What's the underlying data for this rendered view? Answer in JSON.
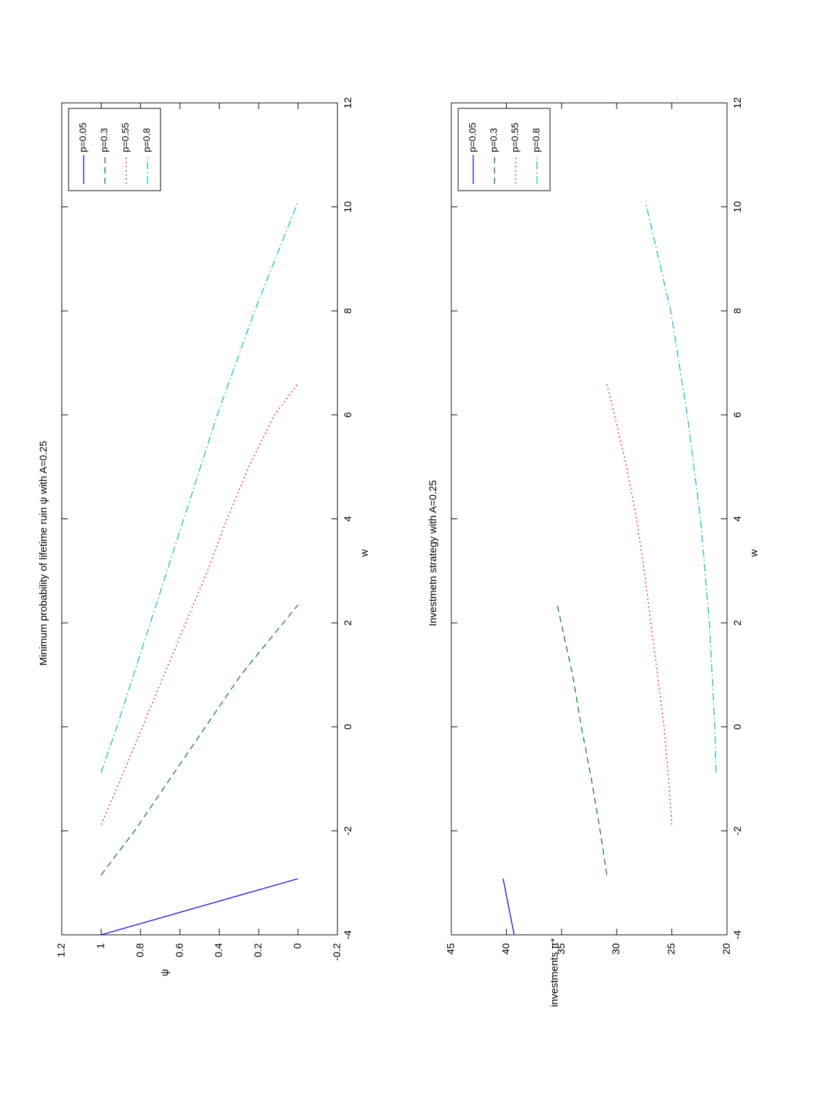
{
  "chart_data": [
    {
      "type": "line",
      "title": "Minimum probability of lifetime ruin ψ with A=0.25",
      "xlabel": "w",
      "ylabel": "ψ",
      "xlim": [
        -4,
        12
      ],
      "ylim": [
        -0.2,
        1.2
      ],
      "x_ticks": [
        "-4",
        "-2",
        "0",
        "2",
        "4",
        "6",
        "8",
        "10",
        "12"
      ],
      "y_ticks": [
        "-0.2",
        "0",
        "0.2",
        "0.4",
        "0.6",
        "0.8",
        "1",
        "1.2"
      ],
      "legend_position": "top-right",
      "rotation": "90 degrees counter-clockwise",
      "series": [
        {
          "name": "p=0.05",
          "color": "#0000ff",
          "style": "solid",
          "x": [
            -4.0,
            -2.92
          ],
          "y": [
            1.0,
            0.0
          ]
        },
        {
          "name": "p=0.3",
          "color": "#008000",
          "style": "dashed",
          "x": [
            -2.85,
            -2.0,
            -1.0,
            0.0,
            1.0,
            2.35
          ],
          "y": [
            1.0,
            0.83,
            0.65,
            0.47,
            0.29,
            0.0
          ]
        },
        {
          "name": "p=0.55",
          "color": "#ff0000",
          "style": "dotted",
          "x": [
            -1.88,
            -1.0,
            0.0,
            1.0,
            2.0,
            3.0,
            4.0,
            5.0,
            6.0,
            6.6
          ],
          "y": [
            1.0,
            0.9,
            0.79,
            0.68,
            0.57,
            0.46,
            0.36,
            0.25,
            0.12,
            0.0
          ]
        },
        {
          "name": "p=0.8",
          "color": "#00bfbf",
          "style": "dashdot",
          "x": [
            -0.88,
            0.0,
            2.0,
            4.0,
            6.0,
            8.0,
            10.1
          ],
          "y": [
            1.0,
            0.92,
            0.75,
            0.58,
            0.41,
            0.22,
            0.0
          ]
        }
      ]
    },
    {
      "type": "line",
      "title": "Investmetn strategy with A=0.25",
      "xlabel": "w",
      "ylabel": "investments π*",
      "xlim": [
        -4,
        12
      ],
      "ylim": [
        20,
        45
      ],
      "x_ticks": [
        "-4",
        "-2",
        "0",
        "2",
        "4",
        "6",
        "8",
        "10",
        "12"
      ],
      "y_ticks": [
        "20",
        "25",
        "30",
        "35",
        "40",
        "45"
      ],
      "legend_position": "top-right",
      "rotation": "90 degrees counter-clockwise",
      "series": [
        {
          "name": "p=0.05",
          "color": "#0000ff",
          "style": "solid",
          "x": [
            -4.0,
            -2.92
          ],
          "y": [
            39.3,
            40.3
          ]
        },
        {
          "name": "p=0.3",
          "color": "#008000",
          "style": "dashed",
          "x": [
            -2.85,
            -2.0,
            -1.0,
            0.0,
            1.0,
            2.35
          ],
          "y": [
            30.9,
            31.5,
            32.3,
            33.2,
            34.0,
            35.4
          ]
        },
        {
          "name": "p=0.55",
          "color": "#ff0000",
          "style": "dotted",
          "x": [
            -1.88,
            -1.0,
            0.0,
            1.0,
            2.0,
            3.0,
            4.0,
            5.0,
            6.0,
            6.6
          ],
          "y": [
            25.0,
            25.3,
            25.7,
            26.3,
            26.9,
            27.5,
            28.2,
            29.1,
            30.2,
            30.9
          ]
        },
        {
          "name": "p=0.8",
          "color": "#00bfbf",
          "style": "dashdot",
          "x": [
            -0.88,
            0.0,
            2.0,
            4.0,
            6.0,
            8.0,
            10.1
          ],
          "y": [
            21.0,
            21.1,
            21.6,
            22.4,
            23.6,
            25.1,
            27.4
          ]
        }
      ]
    }
  ]
}
